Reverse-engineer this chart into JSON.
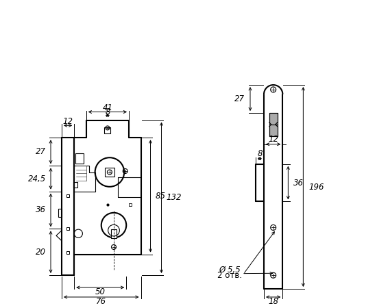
{
  "bg_color": "#ffffff",
  "line_color": "#000000",
  "lw_main": 1.5,
  "lw_thin": 0.8,
  "lw_dim": 0.7,
  "fs": 8.5,
  "sc": 1.52,
  "ox": 90,
  "oy_b": 48,
  "rv_ox": 385,
  "rv_oy_b": 28
}
